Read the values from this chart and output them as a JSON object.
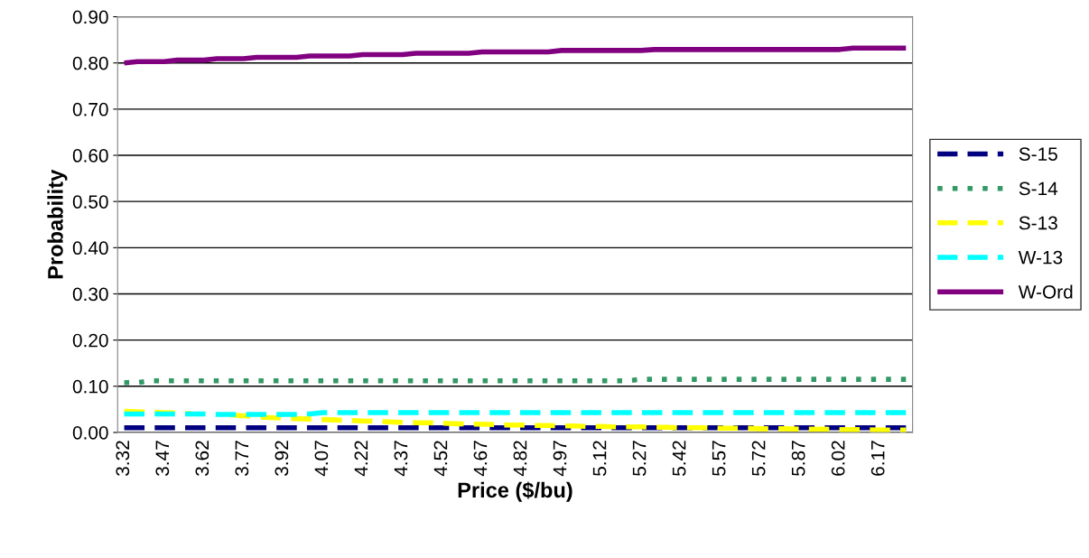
{
  "chart_data": {
    "type": "line",
    "xlabel": "Price ($/bu)",
    "ylabel": "Probability",
    "categories": [
      "3.32",
      null,
      null,
      "3.47",
      null,
      null,
      "3.62",
      null,
      null,
      "3.77",
      null,
      null,
      "3.92",
      null,
      null,
      "4.07",
      null,
      null,
      "4.22",
      null,
      null,
      "4.37",
      null,
      null,
      "4.52",
      null,
      null,
      "4.67",
      null,
      null,
      "4.82",
      null,
      null,
      "4.97",
      null,
      null,
      "5.12",
      null,
      null,
      "5.27",
      null,
      null,
      "5.42",
      null,
      null,
      "5.57",
      null,
      null,
      "5.72",
      null,
      null,
      "5.87",
      null,
      null,
      "6.02",
      null,
      null,
      "6.17",
      null,
      null
    ],
    "ylim": [
      0,
      0.9
    ],
    "yticks": [
      {
        "value": 0,
        "label": "0.00"
      },
      {
        "value": 0.1,
        "label": "0.10"
      },
      {
        "value": 0.2,
        "label": "0.20"
      },
      {
        "value": 0.3,
        "label": "0.30"
      },
      {
        "value": 0.4,
        "label": "0.40"
      },
      {
        "value": 0.5,
        "label": "0.50"
      },
      {
        "value": 0.6,
        "label": "0.60"
      },
      {
        "value": 0.7,
        "label": "0.70"
      },
      {
        "value": 0.8,
        "label": "0.80"
      },
      {
        "value": 0.9,
        "label": "0.90"
      }
    ],
    "grid": "y",
    "legend": "right",
    "marker": "none",
    "series": [
      {
        "name": "S-15",
        "color": "#000080",
        "line_style": "dashed",
        "values": [
          0.01,
          0.01,
          0.01,
          0.01,
          0.01,
          0.01,
          0.01,
          0.01,
          0.01,
          0.01,
          0.01,
          0.01,
          0.01,
          0.01,
          0.01,
          0.01,
          0.01,
          0.01,
          0.01,
          0.01,
          0.01,
          0.01,
          0.01,
          0.01,
          0.01,
          0.01,
          0.01,
          0.01,
          0.01,
          0.01,
          0.01,
          0.01,
          0.01,
          0.01,
          0.01,
          0.01,
          0.01,
          0.01,
          0.01,
          0.01,
          0.01,
          0.01,
          0.01,
          0.01,
          0.01,
          0.01,
          0.01,
          0.01,
          0.01,
          0.01,
          0.01,
          0.01,
          0.01,
          0.01,
          0.01,
          0.01,
          0.01,
          0.01,
          0.01,
          0.01
        ]
      },
      {
        "name": "S-14",
        "color": "#339966",
        "line_style": "dotted",
        "values": [
          0.108,
          0.108,
          0.112,
          0.112,
          0.112,
          0.112,
          0.112,
          0.112,
          0.112,
          0.112,
          0.112,
          0.112,
          0.112,
          0.112,
          0.112,
          0.112,
          0.112,
          0.112,
          0.112,
          0.112,
          0.112,
          0.112,
          0.112,
          0.112,
          0.112,
          0.112,
          0.112,
          0.112,
          0.112,
          0.112,
          0.112,
          0.112,
          0.112,
          0.112,
          0.112,
          0.112,
          0.112,
          0.112,
          0.112,
          0.115,
          0.115,
          0.115,
          0.115,
          0.115,
          0.115,
          0.115,
          0.115,
          0.115,
          0.115,
          0.115,
          0.115,
          0.115,
          0.115,
          0.115,
          0.115,
          0.115,
          0.115,
          0.115,
          0.115,
          0.115
        ]
      },
      {
        "name": "S-13",
        "color": "#ffff00",
        "line_style": "dashed",
        "values": [
          0.046,
          0.045,
          0.044,
          0.043,
          0.042,
          0.041,
          null,
          null,
          0.038,
          0.036,
          0.034,
          0.032,
          0.031,
          0.03,
          0.029,
          0.028,
          0.027,
          0.026,
          0.025,
          0.024,
          0.023,
          0.022,
          0.021,
          0.021,
          0.02,
          0.019,
          0.018,
          0.018,
          0.017,
          0.016,
          0.016,
          0.015,
          0.015,
          0.014,
          0.014,
          0.013,
          0.013,
          0.012,
          0.012,
          0.012,
          0.011,
          0.011,
          0.01,
          0.01,
          0.01,
          0.009,
          0.009,
          0.009,
          0.008,
          0.008,
          0.008,
          0.007,
          0.007,
          0.007,
          0.006,
          0.006,
          0.006,
          0.005,
          0.005,
          0.005
        ]
      },
      {
        "name": "W-13",
        "color": "#00ffff",
        "line_style": "dashed",
        "values": [
          0.04,
          0.04,
          0.04,
          0.04,
          0.04,
          0.04,
          0.04,
          0.039,
          0.039,
          0.039,
          0.039,
          0.039,
          0.039,
          0.039,
          0.04,
          0.043,
          0.043,
          0.043,
          0.043,
          0.043,
          0.043,
          0.043,
          0.043,
          0.043,
          0.043,
          0.043,
          0.043,
          0.043,
          0.043,
          0.043,
          0.043,
          0.043,
          0.043,
          0.043,
          0.043,
          0.043,
          0.043,
          0.043,
          0.043,
          0.043,
          0.043,
          0.043,
          0.043,
          0.043,
          0.043,
          0.043,
          0.043,
          0.043,
          0.043,
          0.043,
          0.043,
          0.043,
          0.043,
          0.043,
          0.043,
          0.043,
          0.043,
          0.043,
          0.043,
          0.043
        ]
      },
      {
        "name": "W-Ord",
        "color": "#800080",
        "line_style": "solid",
        "values": [
          0.8,
          0.803,
          0.803,
          0.803,
          0.806,
          0.806,
          0.806,
          0.809,
          0.809,
          0.809,
          0.812,
          0.812,
          0.812,
          0.812,
          0.815,
          0.815,
          0.815,
          0.815,
          0.818,
          0.818,
          0.818,
          0.818,
          0.821,
          0.821,
          0.821,
          0.821,
          0.821,
          0.824,
          0.824,
          0.824,
          0.824,
          0.824,
          0.824,
          0.827,
          0.827,
          0.827,
          0.827,
          0.827,
          0.827,
          0.827,
          0.829,
          0.829,
          0.829,
          0.829,
          0.829,
          0.829,
          0.829,
          0.829,
          0.829,
          0.829,
          0.829,
          0.829,
          0.829,
          0.829,
          0.829,
          0.832,
          0.832,
          0.832,
          0.832,
          0.832
        ]
      }
    ]
  }
}
